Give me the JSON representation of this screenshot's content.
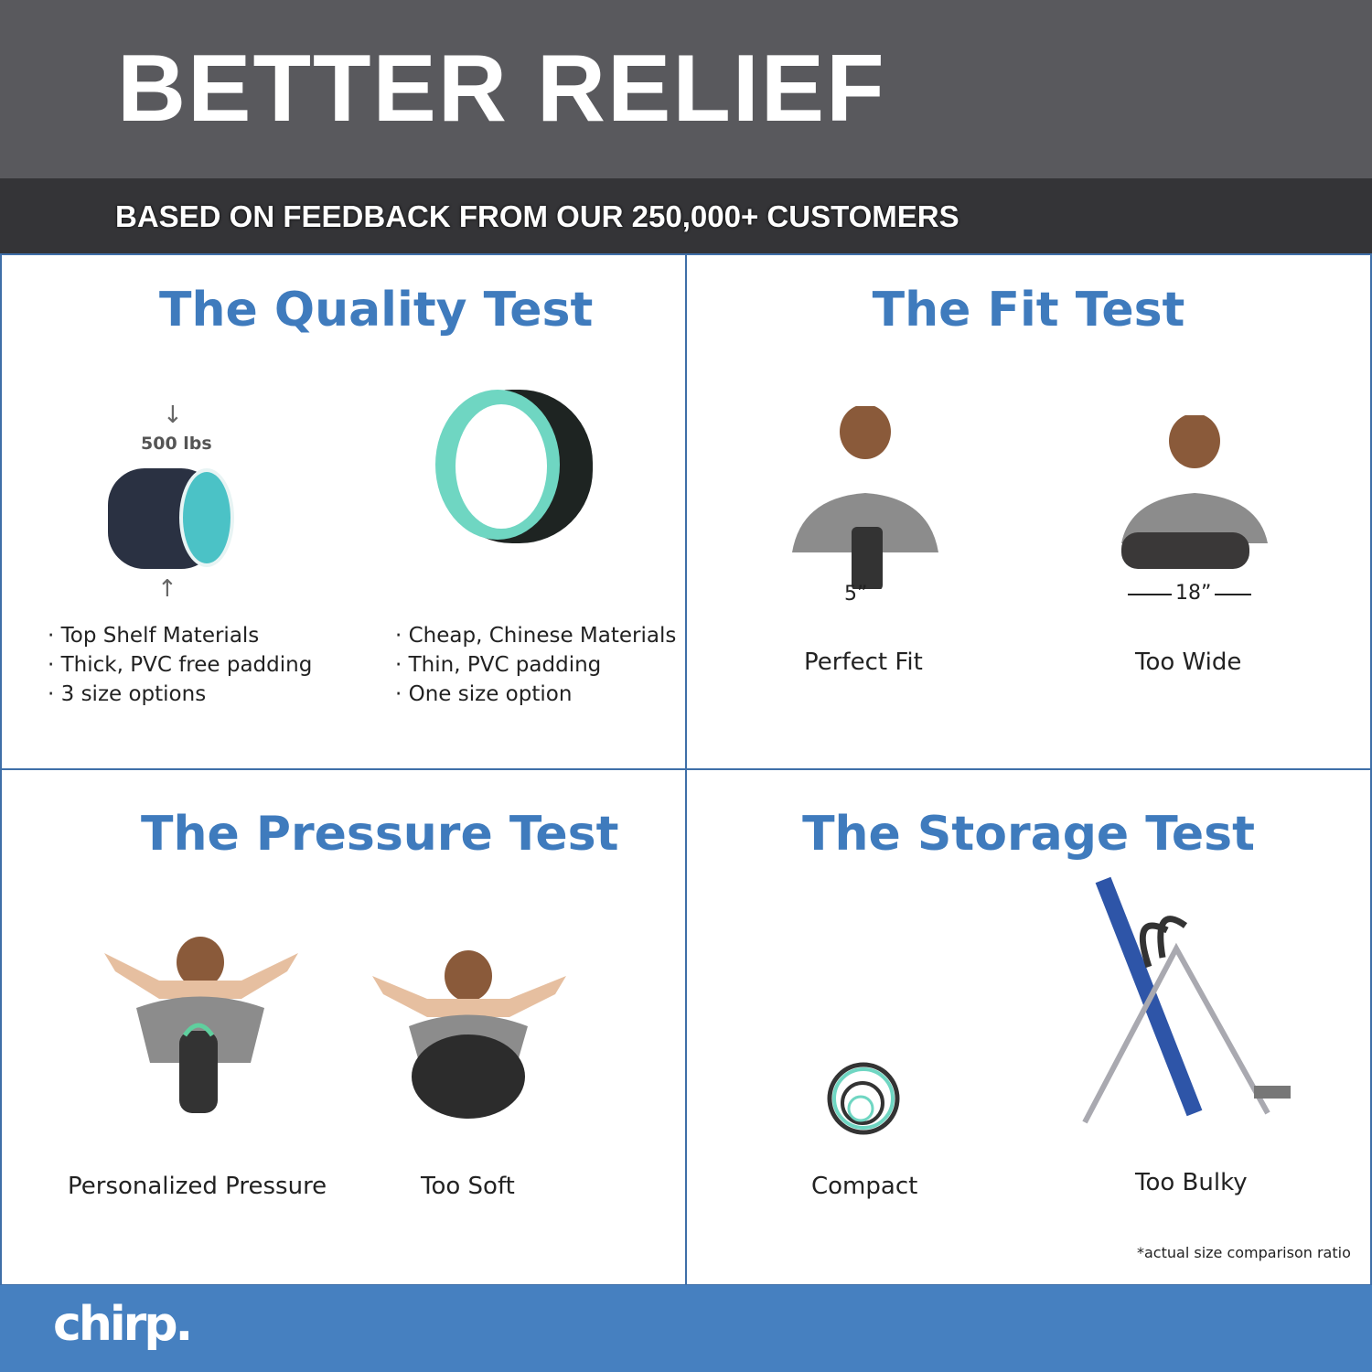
{
  "header": {
    "title": "BETTER RELIEF",
    "subtitle": "BASED ON FEEDBACK FROM OUR 250,000+ CUSTOMERS"
  },
  "quality": {
    "title": "The Quality Test",
    "weight": "500 lbs",
    "left": [
      "· Top Shelf Materials",
      "· Thick, PVC free padding",
      "· 3 size options"
    ],
    "right": [
      "· Cheap, Chinese Materials",
      "· Thin, PVC padding",
      "· One size option"
    ]
  },
  "fit": {
    "title": "The Fit Test",
    "left_dim": "5”",
    "right_dim": "18”",
    "left_label": "Perfect Fit",
    "right_label": "Too Wide"
  },
  "pressure": {
    "title": "The Pressure Test",
    "left_label": "Personalized Pressure",
    "right_label": "Too Soft"
  },
  "storage": {
    "title": "The Storage Test",
    "left_label": "Compact",
    "right_label": "Too Bulky",
    "note": "*actual size comparison ratio"
  },
  "footer": {
    "logo": "chirp."
  },
  "colors": {
    "accent": "#3f7bbd",
    "footer": "#4680c0",
    "teal": "#6fd6c2"
  }
}
